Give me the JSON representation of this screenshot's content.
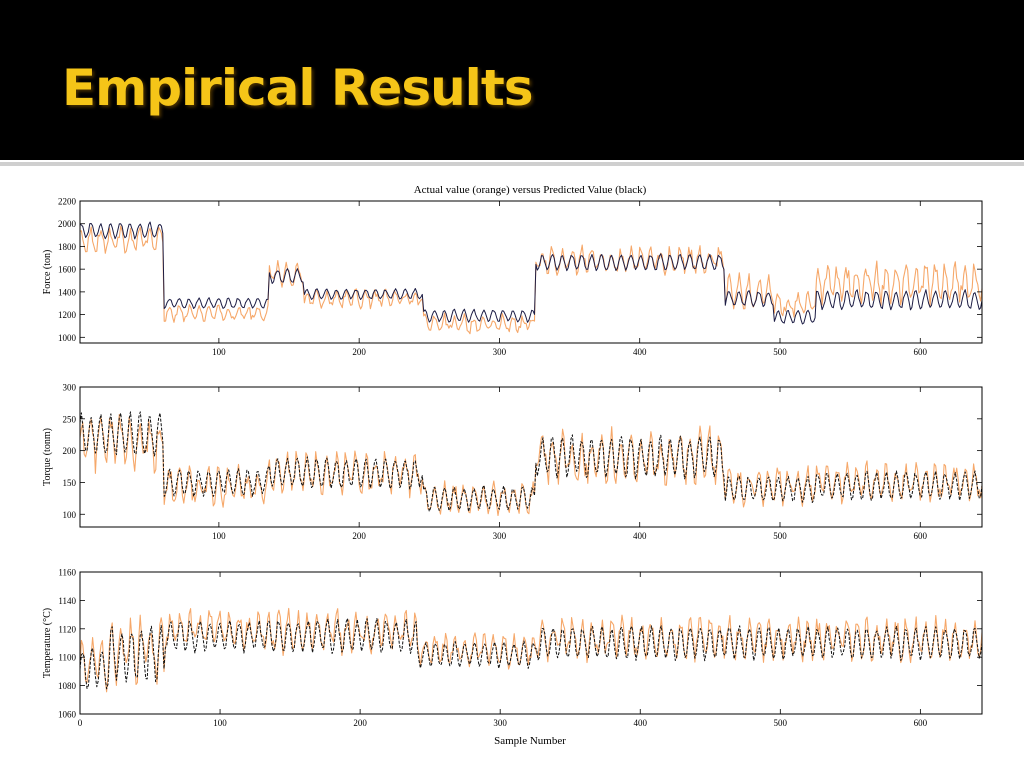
{
  "slide": {
    "title": "Empirical Results",
    "title_color": "#f5c518",
    "header_bg": "#000000"
  },
  "chart_data": {
    "type": "line",
    "suptitle": "Actual value (orange) versus Predicted Value (black)",
    "xlabel": "Sample Number",
    "colors": {
      "actual": "#f6a86a",
      "predicted_force": "#1c1c44",
      "predicted_other": "#111111"
    },
    "charts": [
      {
        "ylabel": "Force (ton)",
        "xlim": [
          1,
          644
        ],
        "ylim": [
          950,
          2200
        ],
        "yticks": [
          1000,
          1200,
          1400,
          1600,
          1800,
          2000,
          2200
        ],
        "xticks": [
          100,
          200,
          300,
          400,
          500,
          600
        ],
        "xtick_from_zero": false,
        "series": [
          {
            "role": "actual",
            "segments": [
              {
                "x": [
                  1,
                  60
                ],
                "mean": 1860,
                "amp": 110
              },
              {
                "x": [
                  61,
                  135
                ],
                "mean": 1210,
                "amp": 70
              },
              {
                "x": [
                  136,
                  160
                ],
                "mean": 1560,
                "amp": 110
              },
              {
                "x": [
                  161,
                  245
                ],
                "mean": 1340,
                "amp": 80
              },
              {
                "x": [
                  246,
                  325
                ],
                "mean": 1120,
                "amp": 90
              },
              {
                "x": [
                  326,
                  460
                ],
                "mean": 1680,
                "amp": 120
              },
              {
                "x": [
                  461,
                  495
                ],
                "mean": 1400,
                "amp": 150
              },
              {
                "x": [
                  496,
                  525
                ],
                "mean": 1280,
                "amp": 110
              },
              {
                "x": [
                  526,
                  644
                ],
                "mean": 1480,
                "amp": 180
              }
            ]
          },
          {
            "role": "predicted",
            "segments": [
              {
                "x": [
                  1,
                  60
                ],
                "mean": 1940,
                "amp": 90
              },
              {
                "x": [
                  61,
                  135
                ],
                "mean": 1300,
                "amp": 60
              },
              {
                "x": [
                  136,
                  160
                ],
                "mean": 1540,
                "amp": 80
              },
              {
                "x": [
                  161,
                  245
                ],
                "mean": 1380,
                "amp": 60
              },
              {
                "x": [
                  246,
                  325
                ],
                "mean": 1190,
                "amp": 70
              },
              {
                "x": [
                  326,
                  460
                ],
                "mean": 1660,
                "amp": 90
              },
              {
                "x": [
                  461,
                  495
                ],
                "mean": 1340,
                "amp": 90
              },
              {
                "x": [
                  496,
                  525
                ],
                "mean": 1180,
                "amp": 80
              },
              {
                "x": [
                  526,
                  644
                ],
                "mean": 1330,
                "amp": 110
              }
            ]
          }
        ]
      },
      {
        "ylabel": "Torque (tonm)",
        "xlim": [
          1,
          644
        ],
        "ylim": [
          80,
          300
        ],
        "yticks": [
          100,
          150,
          200,
          250,
          300
        ],
        "xticks": [
          100,
          200,
          300,
          400,
          500,
          600
        ],
        "xtick_from_zero": false,
        "series": [
          {
            "role": "actual",
            "segments": [
              {
                "x": [
                  1,
                  60
                ],
                "mean": 215,
                "amp": 45
              },
              {
                "x": [
                  61,
                  135
                ],
                "mean": 145,
                "amp": 30
              },
              {
                "x": [
                  136,
                  245
                ],
                "mean": 165,
                "amp": 35
              },
              {
                "x": [
                  246,
                  325
                ],
                "mean": 125,
                "amp": 25
              },
              {
                "x": [
                  326,
                  460
                ],
                "mean": 190,
                "amp": 45
              },
              {
                "x": [
                  461,
                  525
                ],
                "mean": 145,
                "amp": 30
              },
              {
                "x": [
                  526,
                  644
                ],
                "mean": 150,
                "amp": 30
              }
            ]
          },
          {
            "role": "predicted",
            "segments": [
              {
                "x": [
                  1,
                  60
                ],
                "mean": 225,
                "amp": 45
              },
              {
                "x": [
                  61,
                  135
                ],
                "mean": 150,
                "amp": 28
              },
              {
                "x": [
                  136,
                  245
                ],
                "mean": 165,
                "amp": 32
              },
              {
                "x": [
                  246,
                  325
                ],
                "mean": 125,
                "amp": 25
              },
              {
                "x": [
                  326,
                  460
                ],
                "mean": 190,
                "amp": 42
              },
              {
                "x": [
                  461,
                  525
                ],
                "mean": 140,
                "amp": 28
              },
              {
                "x": [
                  526,
                  644
                ],
                "mean": 145,
                "amp": 28
              }
            ]
          }
        ]
      },
      {
        "ylabel": "Temperature (°C)",
        "xlim": [
          0,
          644
        ],
        "ylim": [
          1060,
          1160
        ],
        "yticks": [
          1060,
          1080,
          1100,
          1120,
          1140,
          1160
        ],
        "xticks": [
          0,
          100,
          200,
          300,
          400,
          500,
          600
        ],
        "xtick_from_zero": true,
        "series": [
          {
            "role": "actual",
            "segments": [
              {
                "x": [
                  0,
                  20
                ],
                "mean": 1095,
                "amp": 18
              },
              {
                "x": [
                  21,
                  60
                ],
                "mean": 1105,
                "amp": 25
              },
              {
                "x": [
                  61,
                  240
                ],
                "mean": 1118,
                "amp": 15
              },
              {
                "x": [
                  241,
                  325
                ],
                "mean": 1105,
                "amp": 12
              },
              {
                "x": [
                  326,
                  644
                ],
                "mean": 1113,
                "amp": 15
              }
            ]
          },
          {
            "role": "predicted",
            "segments": [
              {
                "x": [
                  0,
                  20
                ],
                "mean": 1092,
                "amp": 18
              },
              {
                "x": [
                  21,
                  60
                ],
                "mean": 1102,
                "amp": 25
              },
              {
                "x": [
                  61,
                  240
                ],
                "mean": 1115,
                "amp": 15
              },
              {
                "x": [
                  241,
                  325
                ],
                "mean": 1102,
                "amp": 12
              },
              {
                "x": [
                  326,
                  644
                ],
                "mean": 1110,
                "amp": 15
              }
            ]
          }
        ]
      }
    ]
  }
}
